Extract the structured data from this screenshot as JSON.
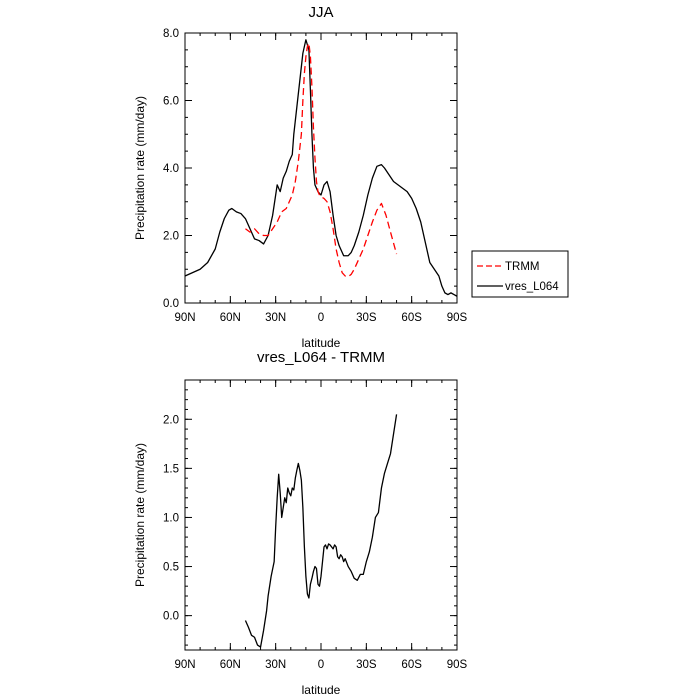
{
  "chart_data": [
    {
      "type": "line",
      "title": "JJA",
      "xlabel": "latitude",
      "ylabel": "Precipitation rate (mm/day)",
      "xlim": [
        90,
        -90
      ],
      "ylim": [
        0,
        8
      ],
      "x_ticks": [
        90,
        60,
        30,
        0,
        -30,
        -60,
        -90
      ],
      "x_tick_labels": [
        "90N",
        "60N",
        "30N",
        "0",
        "30S",
        "60S",
        "90S"
      ],
      "y_ticks": [
        0,
        2,
        4,
        6,
        8
      ],
      "y_tick_labels": [
        "0.0",
        "2.0",
        "4.0",
        "6.0",
        "8.0"
      ],
      "legend": [
        "TRMM",
        "vres_L064"
      ],
      "series": [
        {
          "name": "vres_L064",
          "color": "#000000",
          "dash": "none",
          "x": [
            90,
            85,
            80,
            75,
            70,
            67,
            64,
            61,
            59,
            56,
            53,
            50,
            47,
            44,
            41,
            38,
            35,
            32,
            29,
            27,
            25,
            23,
            21,
            19,
            18,
            16,
            14,
            12,
            10,
            8,
            7,
            6,
            5,
            4,
            2,
            0,
            -2,
            -4,
            -6,
            -8,
            -10,
            -12,
            -15,
            -18,
            -20,
            -22,
            -25,
            -28,
            -31,
            -34,
            -37,
            -40,
            -42,
            -45,
            -48,
            -51,
            -54,
            -57,
            -60,
            -63,
            -66,
            -69,
            -72,
            -75,
            -78,
            -80,
            -82,
            -84,
            -86,
            -88,
            -90
          ],
          "y": [
            0.8,
            0.9,
            1.0,
            1.2,
            1.6,
            2.1,
            2.5,
            2.75,
            2.8,
            2.7,
            2.65,
            2.5,
            2.2,
            1.9,
            1.85,
            1.75,
            2.0,
            2.6,
            3.5,
            3.3,
            3.7,
            3.9,
            4.2,
            4.4,
            5.0,
            5.8,
            6.6,
            7.4,
            7.8,
            7.5,
            6.3,
            5.0,
            4.0,
            3.5,
            3.3,
            3.2,
            3.5,
            3.6,
            3.3,
            2.6,
            2.0,
            1.7,
            1.4,
            1.4,
            1.5,
            1.7,
            2.1,
            2.6,
            3.2,
            3.7,
            4.05,
            4.1,
            4.0,
            3.8,
            3.6,
            3.5,
            3.4,
            3.3,
            3.1,
            2.8,
            2.4,
            1.8,
            1.2,
            1.0,
            0.8,
            0.5,
            0.3,
            0.25,
            0.3,
            0.25,
            0.2
          ]
        },
        {
          "name": "TRMM",
          "color": "#ff0000",
          "dash": "7,4",
          "x": [
            50,
            47,
            44,
            41,
            38,
            35,
            32,
            29,
            26,
            23,
            21,
            19,
            17,
            15,
            13,
            12,
            11,
            10,
            9,
            8,
            7,
            6,
            5,
            4,
            3,
            2,
            1,
            0,
            -2,
            -4,
            -6,
            -8,
            -10,
            -12,
            -14,
            -16,
            -18,
            -20,
            -22,
            -25,
            -28,
            -31,
            -34,
            -37,
            -40,
            -43,
            -46,
            -50
          ],
          "y": [
            2.2,
            2.1,
            2.2,
            2.05,
            2.0,
            2.0,
            2.2,
            2.4,
            2.7,
            2.8,
            3.0,
            3.2,
            3.6,
            4.2,
            5.0,
            6.0,
            6.8,
            7.3,
            7.6,
            7.7,
            7.3,
            6.4,
            5.2,
            4.3,
            3.6,
            3.3,
            3.2,
            3.15,
            3.1,
            3.0,
            2.7,
            2.2,
            1.6,
            1.2,
            0.9,
            0.8,
            0.78,
            0.85,
            1.0,
            1.3,
            1.6,
            2.0,
            2.4,
            2.75,
            2.95,
            2.6,
            2.1,
            1.45
          ]
        }
      ]
    },
    {
      "type": "line",
      "title": "vres_L064 - TRMM",
      "xlabel": "latitude",
      "ylabel": "Precipitation rate (mm/day)",
      "xlim": [
        90,
        -90
      ],
      "ylim": [
        -0.35,
        2.4
      ],
      "x_ticks": [
        90,
        60,
        30,
        0,
        -30,
        -60,
        -90
      ],
      "x_tick_labels": [
        "90N",
        "60N",
        "30N",
        "0",
        "30S",
        "60S",
        "90S"
      ],
      "y_ticks": [
        0,
        0.5,
        1.0,
        1.5,
        2.0
      ],
      "y_tick_labels": [
        "0.0",
        "0.5",
        "1.0",
        "1.5",
        "2.0"
      ],
      "series": [
        {
          "name": "vres_L064 - TRMM",
          "color": "#000000",
          "dash": "none",
          "x": [
            50,
            48,
            46,
            44,
            42,
            40,
            38,
            36,
            35,
            33,
            31,
            30,
            29,
            28,
            27,
            26,
            25,
            24,
            23,
            22,
            21,
            20,
            19,
            18,
            17,
            16,
            15,
            14,
            13,
            12,
            11,
            10,
            9,
            8,
            7,
            6,
            5,
            4,
            3,
            2,
            1,
            0,
            -1,
            -2,
            -3,
            -4,
            -5,
            -6,
            -7,
            -8,
            -9,
            -10,
            -11,
            -12,
            -13,
            -14,
            -15,
            -16,
            -18,
            -20,
            -22,
            -24,
            -26,
            -28,
            -30,
            -32,
            -34,
            -36,
            -38,
            -40,
            -42,
            -44,
            -46,
            -48,
            -50
          ],
          "y": [
            -0.05,
            -0.12,
            -0.2,
            -0.22,
            -0.3,
            -0.32,
            -0.15,
            0.05,
            0.2,
            0.4,
            0.55,
            0.9,
            1.2,
            1.44,
            1.25,
            1.0,
            1.1,
            1.2,
            1.15,
            1.3,
            1.25,
            1.22,
            1.3,
            1.28,
            1.4,
            1.48,
            1.55,
            1.48,
            1.38,
            1.1,
            0.7,
            0.4,
            0.22,
            0.18,
            0.32,
            0.38,
            0.45,
            0.5,
            0.48,
            0.32,
            0.3,
            0.4,
            0.55,
            0.7,
            0.72,
            0.68,
            0.73,
            0.72,
            0.7,
            0.68,
            0.72,
            0.7,
            0.6,
            0.58,
            0.62,
            0.6,
            0.55,
            0.58,
            0.5,
            0.45,
            0.38,
            0.36,
            0.42,
            0.42,
            0.55,
            0.65,
            0.8,
            1.0,
            1.05,
            1.3,
            1.45,
            1.55,
            1.65,
            1.85,
            2.05
          ]
        }
      ]
    }
  ]
}
